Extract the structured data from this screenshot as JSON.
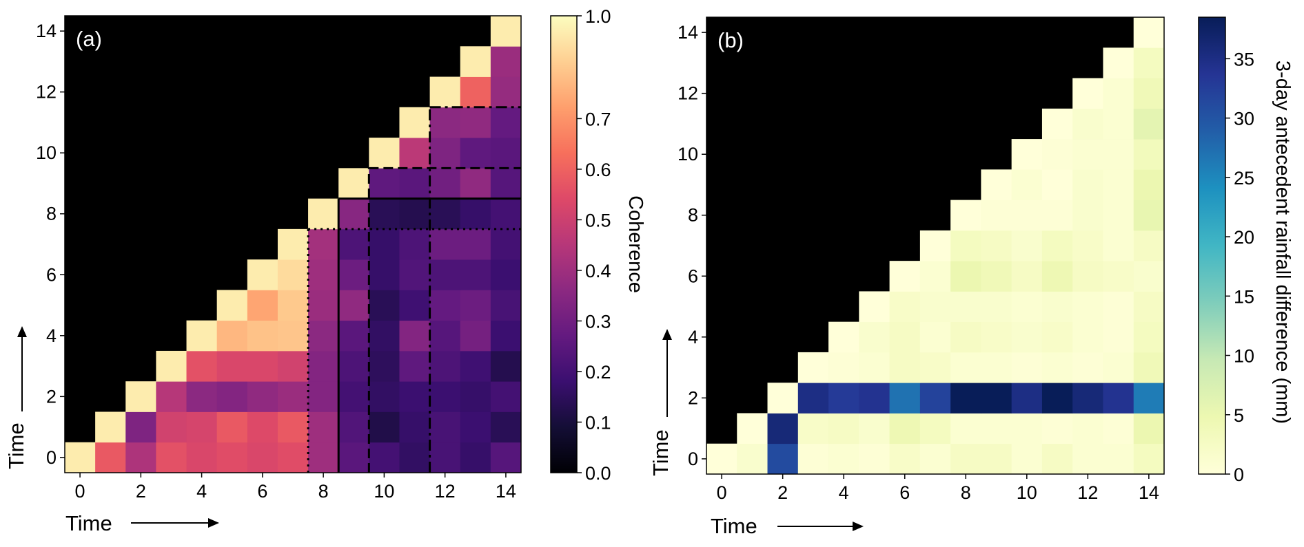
{
  "chart_data": [
    {
      "type": "heatmap",
      "panel_label": "(a)",
      "xlabel": "Time",
      "ylabel": "Time",
      "x": [
        0,
        1,
        2,
        3,
        4,
        5,
        6,
        7,
        8,
        9,
        10,
        11,
        12,
        13,
        14
      ],
      "y": [
        0,
        1,
        2,
        3,
        4,
        5,
        6,
        7,
        8,
        9,
        10,
        11,
        12,
        13,
        14
      ],
      "xlim": [
        -0.5,
        14.5
      ],
      "ylim": [
        -0.5,
        14.5
      ],
      "xticks": [
        0,
        2,
        4,
        6,
        8,
        10,
        12,
        14
      ],
      "yticks": [
        0,
        2,
        4,
        6,
        8,
        10,
        12,
        14
      ],
      "mask": "upper-left triangle (y > x) masked",
      "colormap": "magma",
      "colorbar": {
        "label": "Coherence",
        "range": [
          0,
          1.0
        ],
        "tick_labels": [
          "0.0",
          "0.1",
          "0.2",
          "0.3",
          "0.4",
          "0.5",
          "0.6",
          "0.7",
          "1.0"
        ],
        "tick_values": [
          0,
          0.1,
          0.2,
          0.3,
          0.4,
          0.5,
          0.6,
          0.7,
          1.0
        ]
      },
      "z": [
        [
          0.95,
          0.58,
          0.43,
          0.56,
          0.53,
          0.55,
          0.53,
          0.55,
          0.4,
          0.25,
          0.2,
          0.16,
          0.21,
          0.17,
          0.24
        ],
        [
          null,
          0.95,
          0.33,
          0.51,
          0.52,
          0.58,
          0.54,
          0.58,
          0.4,
          0.23,
          0.12,
          0.17,
          0.21,
          0.18,
          0.14
        ],
        [
          null,
          null,
          0.95,
          0.45,
          0.36,
          0.34,
          0.37,
          0.39,
          0.34,
          0.2,
          0.16,
          0.18,
          0.18,
          0.17,
          0.2
        ],
        [
          null,
          null,
          null,
          0.95,
          0.56,
          0.53,
          0.53,
          0.51,
          0.34,
          0.22,
          0.15,
          0.26,
          0.22,
          0.19,
          0.13
        ],
        [
          null,
          null,
          null,
          null,
          0.95,
          0.8,
          0.83,
          0.84,
          0.36,
          0.25,
          0.16,
          0.34,
          0.24,
          0.31,
          0.18
        ],
        [
          null,
          null,
          null,
          null,
          null,
          0.95,
          0.75,
          0.85,
          0.39,
          0.37,
          0.14,
          0.19,
          0.27,
          0.29,
          0.21
        ],
        [
          null,
          null,
          null,
          null,
          null,
          null,
          0.95,
          0.9,
          0.4,
          0.29,
          0.17,
          0.23,
          0.22,
          0.22,
          0.18
        ],
        [
          null,
          null,
          null,
          null,
          null,
          null,
          null,
          0.95,
          0.41,
          0.22,
          0.17,
          0.22,
          0.29,
          0.29,
          0.2
        ],
        [
          null,
          null,
          null,
          null,
          null,
          null,
          null,
          null,
          0.95,
          0.35,
          0.14,
          0.13,
          0.14,
          0.17,
          0.2
        ],
        [
          null,
          null,
          null,
          null,
          null,
          null,
          null,
          null,
          null,
          0.95,
          0.26,
          0.25,
          0.3,
          0.37,
          0.24
        ],
        [
          null,
          null,
          null,
          null,
          null,
          null,
          null,
          null,
          null,
          null,
          0.95,
          0.46,
          0.33,
          0.26,
          0.25
        ],
        [
          null,
          null,
          null,
          null,
          null,
          null,
          null,
          null,
          null,
          null,
          null,
          0.95,
          0.36,
          0.37,
          0.27
        ],
        [
          null,
          null,
          null,
          null,
          null,
          null,
          null,
          null,
          null,
          null,
          null,
          null,
          0.95,
          0.6,
          0.38
        ],
        [
          null,
          null,
          null,
          null,
          null,
          null,
          null,
          null,
          null,
          null,
          null,
          null,
          null,
          0.95,
          0.39
        ],
        [
          null,
          null,
          null,
          null,
          null,
          null,
          null,
          null,
          null,
          null,
          null,
          null,
          null,
          null,
          0.95
        ]
      ],
      "annotations": [
        {
          "style": "dotted",
          "boundary_after_x": 7,
          "boundary_after_y": 7
        },
        {
          "style": "solid",
          "boundary_after_x": 8,
          "boundary_after_y": 8
        },
        {
          "style": "dashed",
          "boundary_after_x": 9,
          "boundary_after_y": 9
        },
        {
          "style": "dashdot",
          "boundary_after_x": 11,
          "boundary_after_y": 11
        }
      ]
    },
    {
      "type": "heatmap",
      "panel_label": "(b)",
      "xlabel": "Time",
      "ylabel": "Time",
      "x": [
        0,
        1,
        2,
        3,
        4,
        5,
        6,
        7,
        8,
        9,
        10,
        11,
        12,
        13,
        14
      ],
      "y": [
        0,
        1,
        2,
        3,
        4,
        5,
        6,
        7,
        8,
        9,
        10,
        11,
        12,
        13,
        14
      ],
      "xlim": [
        -0.5,
        14.5
      ],
      "ylim": [
        -0.5,
        14.5
      ],
      "xticks": [
        0,
        2,
        4,
        6,
        8,
        10,
        12,
        14
      ],
      "yticks": [
        0,
        2,
        4,
        6,
        8,
        10,
        12,
        14
      ],
      "mask": "upper-left triangle (y > x) masked",
      "colormap": "YlGnBu",
      "colorbar": {
        "label": "3-day antecedent rainfall difference (mm)",
        "range": [
          0,
          38.5
        ],
        "tick_labels": [
          "0",
          "5",
          "10",
          "15",
          "20",
          "25",
          "30",
          "35"
        ],
        "tick_values": [
          0,
          5,
          10,
          15,
          20,
          25,
          30,
          35
        ]
      },
      "z": [
        [
          0,
          1.5,
          31,
          0.5,
          1,
          0.5,
          2,
          1,
          2.5,
          2.5,
          1,
          2.5,
          1,
          1,
          3
        ],
        [
          null,
          0,
          36,
          2,
          2.5,
          1.5,
          4.5,
          3,
          1,
          1,
          1,
          0.5,
          1,
          0.5,
          5
        ],
        [
          null,
          null,
          0,
          35,
          33,
          34,
          27,
          32,
          38.5,
          38.5,
          35,
          38.5,
          36,
          34,
          26
        ],
        [
          null,
          null,
          null,
          0,
          0.5,
          1,
          2.5,
          2,
          1,
          1,
          0.5,
          1,
          0.5,
          1,
          4
        ],
        [
          null,
          null,
          null,
          null,
          0,
          1.5,
          2.5,
          1,
          2.5,
          2,
          1.5,
          2,
          1,
          0.5,
          3
        ],
        [
          null,
          null,
          null,
          null,
          null,
          0,
          2,
          1.5,
          1.5,
          1.5,
          1,
          1.5,
          1,
          0.5,
          2.5
        ],
        [
          null,
          null,
          null,
          null,
          null,
          null,
          0,
          1,
          5,
          4,
          2.5,
          4.5,
          2.5,
          2,
          1.5
        ],
        [
          null,
          null,
          null,
          null,
          null,
          null,
          null,
          0,
          3,
          2.5,
          1.5,
          3,
          2,
          1,
          2.5
        ],
        [
          null,
          null,
          null,
          null,
          null,
          null,
          null,
          null,
          0,
          0.5,
          0.5,
          0.5,
          1.5,
          1,
          5.5
        ],
        [
          null,
          null,
          null,
          null,
          null,
          null,
          null,
          null,
          null,
          0,
          1,
          0,
          1.5,
          1,
          5
        ],
        [
          null,
          null,
          null,
          null,
          null,
          null,
          null,
          null,
          null,
          null,
          0,
          0.5,
          1,
          1,
          3.5
        ],
        [
          null,
          null,
          null,
          null,
          null,
          null,
          null,
          null,
          null,
          null,
          null,
          0,
          1.5,
          1,
          6
        ],
        [
          null,
          null,
          null,
          null,
          null,
          null,
          null,
          null,
          null,
          null,
          null,
          null,
          0,
          1,
          4
        ],
        [
          null,
          null,
          null,
          null,
          null,
          null,
          null,
          null,
          null,
          null,
          null,
          null,
          null,
          0,
          3
        ],
        [
          null,
          null,
          null,
          null,
          null,
          null,
          null,
          null,
          null,
          null,
          null,
          null,
          null,
          null,
          0
        ]
      ]
    }
  ]
}
